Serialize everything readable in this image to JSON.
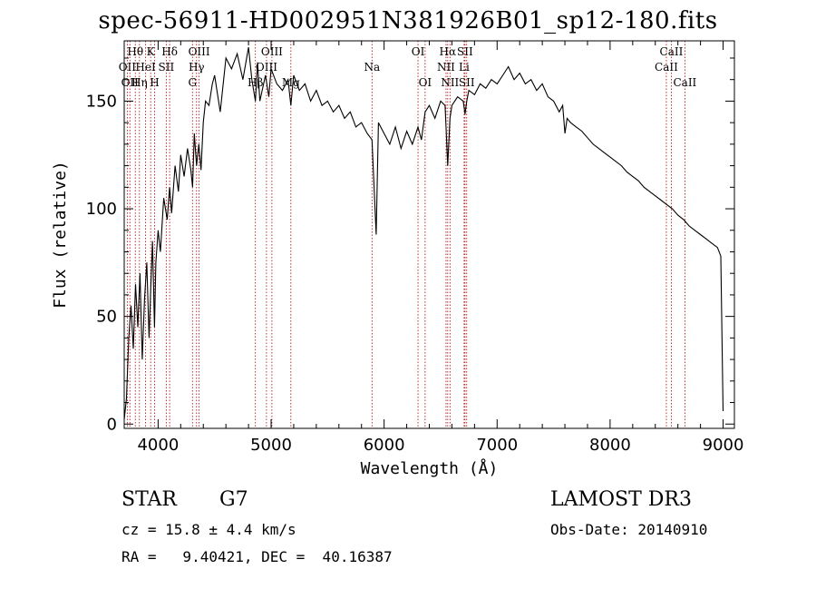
{
  "chart_data": {
    "type": "line",
    "title": "spec-56911-HD002951N381926B01_sp12-180.fits",
    "xlabel": "Wavelength (Å)",
    "ylabel": "Flux (relative)",
    "xlim": [
      3700,
      9100
    ],
    "ylim": [
      -2,
      178
    ],
    "xticks": [
      4000,
      5000,
      6000,
      7000,
      8000,
      9000
    ],
    "yticks": [
      0,
      50,
      100,
      150
    ],
    "series": [
      {
        "name": "flux",
        "x": [
          3700,
          3720,
          3740,
          3760,
          3780,
          3800,
          3820,
          3840,
          3860,
          3880,
          3900,
          3920,
          3933,
          3950,
          3968,
          3980,
          4000,
          4020,
          4050,
          4080,
          4102,
          4120,
          4150,
          4180,
          4200,
          4230,
          4260,
          4290,
          4305,
          4320,
          4340,
          4360,
          4380,
          4400,
          4420,
          4450,
          4480,
          4500,
          4550,
          4600,
          4650,
          4700,
          4750,
          4800,
          4830,
          4861,
          4880,
          4900,
          4950,
          4980,
          5000,
          5050,
          5100,
          5150,
          5175,
          5200,
          5250,
          5300,
          5350,
          5400,
          5450,
          5500,
          5550,
          5600,
          5650,
          5700,
          5750,
          5800,
          5850,
          5893,
          5910,
          5930,
          5950,
          6000,
          6050,
          6100,
          6150,
          6200,
          6250,
          6300,
          6330,
          6363,
          6400,
          6450,
          6500,
          6540,
          6563,
          6583,
          6600,
          6650,
          6700,
          6716,
          6731,
          6750,
          6800,
          6850,
          6900,
          6950,
          7000,
          7050,
          7100,
          7150,
          7200,
          7250,
          7300,
          7350,
          7400,
          7450,
          7500,
          7550,
          7580,
          7600,
          7620,
          7650,
          7700,
          7750,
          7800,
          7850,
          7900,
          7950,
          8000,
          8050,
          8100,
          8150,
          8200,
          8250,
          8300,
          8350,
          8400,
          8450,
          8500,
          8550,
          8600,
          8650,
          8700,
          8750,
          8800,
          8850,
          8900,
          8950,
          8980,
          9000
        ],
        "values": [
          2,
          12,
          40,
          55,
          35,
          65,
          45,
          70,
          30,
          58,
          75,
          40,
          60,
          85,
          45,
          75,
          90,
          80,
          105,
          95,
          110,
          98,
          120,
          108,
          125,
          115,
          128,
          118,
          110,
          135,
          120,
          130,
          118,
          140,
          150,
          148,
          158,
          162,
          145,
          170,
          165,
          172,
          160,
          175,
          160,
          150,
          168,
          150,
          162,
          152,
          165,
          158,
          155,
          160,
          148,
          162,
          155,
          158,
          150,
          155,
          148,
          150,
          145,
          148,
          142,
          145,
          138,
          140,
          135,
          132,
          112,
          88,
          140,
          135,
          130,
          138,
          128,
          136,
          130,
          138,
          132,
          145,
          148,
          142,
          150,
          148,
          120,
          142,
          148,
          152,
          150,
          144,
          150,
          155,
          153,
          158,
          156,
          160,
          158,
          162,
          166,
          160,
          163,
          158,
          160,
          155,
          158,
          152,
          150,
          145,
          148,
          135,
          142,
          140,
          138,
          136,
          133,
          130,
          128,
          126,
          124,
          122,
          120,
          117,
          115,
          113,
          110,
          108,
          106,
          104,
          102,
          100,
          97,
          95,
          92,
          90,
          88,
          86,
          84,
          82,
          78,
          6
        ]
      }
    ],
    "lines": [
      {
        "w": 3727,
        "label": "OII",
        "row": 2
      },
      {
        "w": 3750,
        "label": "OII",
        "row": 3
      },
      {
        "w": 3798,
        "label": "Hθ",
        "row": 1
      },
      {
        "w": 3835,
        "label": "Hη",
        "row": 3
      },
      {
        "w": 3889,
        "label": "HeI",
        "row": 2
      },
      {
        "w": 3934,
        "label": "K",
        "row": 1
      },
      {
        "w": 3969,
        "label": "H",
        "row": 3
      },
      {
        "w": 4072,
        "label": "SII",
        "row": 2
      },
      {
        "w": 4102,
        "label": "Hδ",
        "row": 1
      },
      {
        "w": 4304,
        "label": "G",
        "row": 3
      },
      {
        "w": 4340,
        "label": "Hγ",
        "row": 2
      },
      {
        "w": 4363,
        "label": "OIII",
        "row": 1
      },
      {
        "w": 4861,
        "label": "Hβ",
        "row": 3
      },
      {
        "w": 4959,
        "label": "OIII",
        "row": 2
      },
      {
        "w": 5007,
        "label": "OIII",
        "row": 1
      },
      {
        "w": 5175,
        "label": "Mg",
        "row": 3
      },
      {
        "w": 5893,
        "label": "Na",
        "row": 2
      },
      {
        "w": 6300,
        "label": "OI",
        "row": 1
      },
      {
        "w": 6363,
        "label": "OI",
        "row": 3
      },
      {
        "w": 6548,
        "label": "NII",
        "row": 2
      },
      {
        "w": 6563,
        "label": "Hα",
        "row": 1
      },
      {
        "w": 6583,
        "label": "NII",
        "row": 3
      },
      {
        "w": 6708,
        "label": "Li",
        "row": 2
      },
      {
        "w": 6716,
        "label": "SII",
        "row": 1
      },
      {
        "w": 6731,
        "label": "SII",
        "row": 3
      },
      {
        "w": 8498,
        "label": "CaII",
        "row": 2
      },
      {
        "w": 8542,
        "label": "CaII",
        "row": 1
      },
      {
        "w": 8662,
        "label": "CaII",
        "row": 3
      }
    ]
  },
  "info": {
    "class": "STAR",
    "subclass": "G7",
    "survey": "LAMOST DR3",
    "cz": "cz = 15.8 ± 4.4 km/s",
    "obsdate": "Obs-Date: 20140910",
    "radec": "RA =   9.40421, DEC =  40.16387"
  },
  "colors": {
    "line_marker": "#b00000",
    "axis": "#000000"
  }
}
